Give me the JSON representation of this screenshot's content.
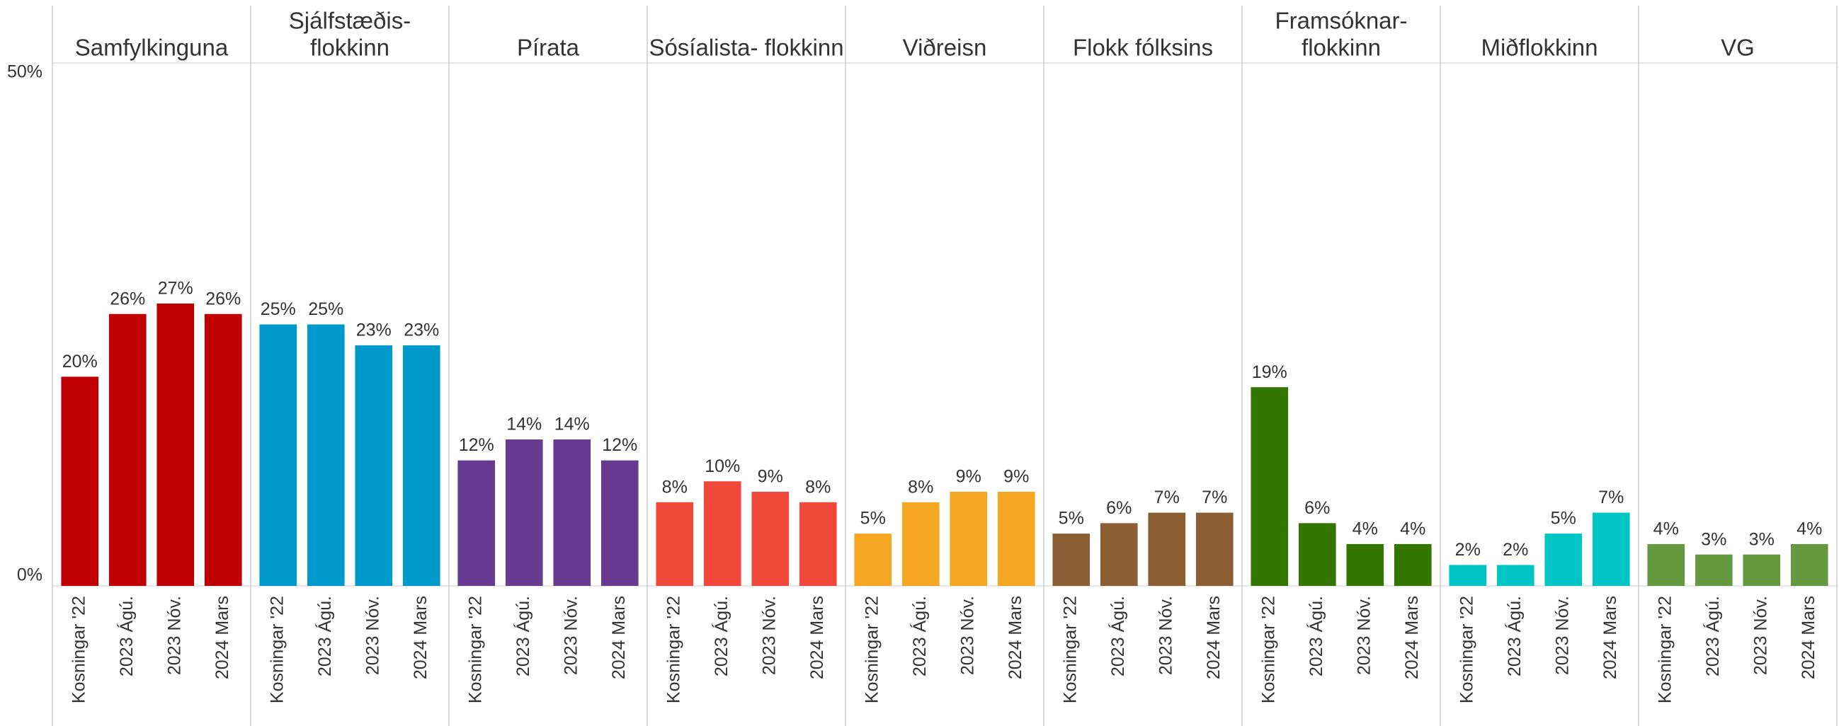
{
  "chart_data": [
    {
      "type": "bar",
      "title": [
        "Samfylkinguna"
      ],
      "categories": [
        "Kosningar '22",
        "2023 Ágú.",
        "2023 Nóv.",
        "2024 Mars"
      ],
      "values": [
        20,
        26,
        27,
        26
      ],
      "value_labels": [
        "20%",
        "26%",
        "27%",
        "26%"
      ],
      "color": "#c00000",
      "ylim": [
        0,
        50
      ],
      "yticks": [
        {
          "value": 0,
          "label": "0%"
        },
        {
          "value": 50,
          "label": "50%"
        }
      ],
      "grid": true
    },
    {
      "type": "bar",
      "title": [
        "Sjálfstæðis-",
        "flokkinn"
      ],
      "categories": [
        "Kosningar '22",
        "2023 Ágú.",
        "2023 Nóv.",
        "2024 Mars"
      ],
      "values": [
        25,
        25,
        23,
        23
      ],
      "value_labels": [
        "25%",
        "25%",
        "23%",
        "23%"
      ],
      "color": "#0099cc",
      "ylim": [
        0,
        50
      ]
    },
    {
      "type": "bar",
      "title": [
        "Pírata"
      ],
      "categories": [
        "Kosningar '22",
        "2023 Ágú.",
        "2023 Nóv.",
        "2024 Mars"
      ],
      "values": [
        12,
        14,
        14,
        12
      ],
      "value_labels": [
        "12%",
        "14%",
        "14%",
        "12%"
      ],
      "color": "#663a8e",
      "ylim": [
        0,
        50
      ]
    },
    {
      "type": "bar",
      "title": [
        "Sósíalista- flokkinn"
      ],
      "categories": [
        "Kosningar '22",
        "2023 Ágú.",
        "2023 Nóv.",
        "2024 Mars"
      ],
      "values": [
        8,
        10,
        9,
        8
      ],
      "value_labels": [
        "8%",
        "10%",
        "9%",
        "8%"
      ],
      "color": "#f0483a",
      "ylim": [
        0,
        50
      ]
    },
    {
      "type": "bar",
      "title": [
        "Viðreisn"
      ],
      "categories": [
        "Kosningar '22",
        "2023 Ágú.",
        "2023 Nóv.",
        "2024 Mars"
      ],
      "values": [
        5,
        8,
        9,
        9
      ],
      "value_labels": [
        "5%",
        "8%",
        "9%",
        "9%"
      ],
      "color": "#f5a623",
      "ylim": [
        0,
        50
      ]
    },
    {
      "type": "bar",
      "title": [
        "Flokk fólksins"
      ],
      "categories": [
        "Kosningar '22",
        "2023 Ágú.",
        "2023 Nóv.",
        "2024 Mars"
      ],
      "values": [
        5,
        6,
        7,
        7
      ],
      "value_labels": [
        "5%",
        "6%",
        "7%",
        "7%"
      ],
      "color": "#8b5e34",
      "ylim": [
        0,
        50
      ]
    },
    {
      "type": "bar",
      "title": [
        "Framsóknar-",
        "flokkinn"
      ],
      "categories": [
        "Kosningar '22",
        "2023 Ágú.",
        "2023 Nóv.",
        "2024 Mars"
      ],
      "values": [
        19,
        6,
        4,
        4
      ],
      "value_labels": [
        "19%",
        "6%",
        "4%",
        "4%"
      ],
      "color": "#337700",
      "ylim": [
        0,
        50
      ]
    },
    {
      "type": "bar",
      "title": [
        "Miðflokkinn"
      ],
      "categories": [
        "Kosningar '22",
        "2023 Ágú.",
        "2023 Nóv.",
        "2024 Mars"
      ],
      "values": [
        2,
        2,
        5,
        7
      ],
      "value_labels": [
        "2%",
        "2%",
        "5%",
        "7%"
      ],
      "color": "#00c5c5",
      "ylim": [
        0,
        50
      ]
    },
    {
      "type": "bar",
      "title": [
        "VG"
      ],
      "categories": [
        "Kosningar '22",
        "2023 Ágú.",
        "2023 Nóv.",
        "2024 Mars"
      ],
      "values": [
        4,
        3,
        3,
        4
      ],
      "value_labels": [
        "4%",
        "3%",
        "3%",
        "4%"
      ],
      "color": "#65993f",
      "ylim": [
        0,
        50
      ]
    }
  ]
}
